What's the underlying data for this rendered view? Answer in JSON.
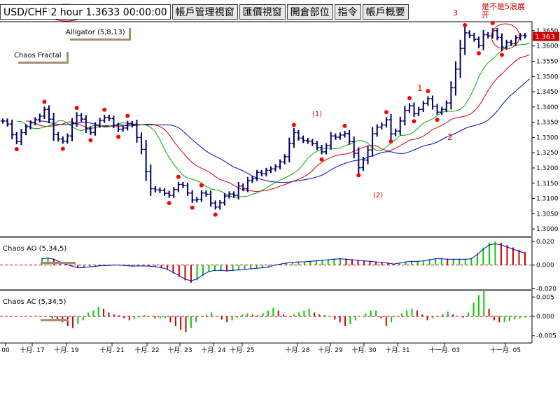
{
  "header": {
    "symbol": "USD/CHF",
    "timeframe": "2 hour",
    "price_time": "1.3633 00:00:00",
    "tabs": [
      "帳戶管理視窗",
      "匯價視窗",
      "開倉部位",
      "指令",
      "帳戶概要"
    ],
    "note_number": "3",
    "note_text_1": "是不是5浪展",
    "note_text_2": "开"
  },
  "colors": {
    "bars": "#000066",
    "jaw": "#0000cc",
    "teeth": "#cc0000",
    "lips": "#00aa00",
    "fractal": "#ff0000",
    "up": "#00cc00",
    "down": "#cc0000",
    "price_tag_bg": "#cc0000",
    "annotation": "#cc0000"
  },
  "chart_data": [
    {
      "type": "candlestick-ohlc",
      "title": "",
      "indicator_labels": [
        "Alligator (5,8,13)",
        "Chaos Fractal"
      ],
      "current_price": "1.363",
      "ylim": [
        1.2975,
        1.3675
      ],
      "y_ticks": [
        "1.3650",
        "1.3600",
        "1.3550",
        "1.3500",
        "1.3450",
        "1.3400",
        "1.3350",
        "1.3300",
        "1.3250",
        "1.3200",
        "1.3150",
        "1.3100",
        "1.3050",
        "1.3000"
      ],
      "annotations": [
        "(1)",
        "(2)",
        "1",
        "2"
      ],
      "close_series": [
        1.3354,
        1.3344,
        1.3309,
        1.3287,
        1.3316,
        1.3335,
        1.3348,
        1.3358,
        1.337,
        1.3392,
        1.336,
        1.331,
        1.3295,
        1.3288,
        1.3305,
        1.3346,
        1.3372,
        1.336,
        1.3328,
        1.3316,
        1.334,
        1.3356,
        1.3366,
        1.3362,
        1.334,
        1.3327,
        1.3331,
        1.3346,
        1.3341,
        1.33,
        1.3261,
        1.3188,
        1.3132,
        1.3128,
        1.3126,
        1.3117,
        1.311,
        1.3129,
        1.3146,
        1.3142,
        1.3118,
        1.3095,
        1.3097,
        1.3118,
        1.3114,
        1.3085,
        1.3072,
        1.3086,
        1.3108,
        1.3115,
        1.311,
        1.3141,
        1.3132,
        1.3159,
        1.3166,
        1.3185,
        1.3181,
        1.3192,
        1.3197,
        1.3204,
        1.322,
        1.3237,
        1.3281,
        1.3316,
        1.3298,
        1.329,
        1.3287,
        1.328,
        1.3267,
        1.3253,
        1.3273,
        1.3305,
        1.3301,
        1.3308,
        1.3313,
        1.3287,
        1.3248,
        1.3201,
        1.3226,
        1.3259,
        1.3312,
        1.3334,
        1.3341,
        1.3358,
        1.3312,
        1.3321,
        1.3354,
        1.3389,
        1.3404,
        1.3378,
        1.3392,
        1.3412,
        1.3427,
        1.3402,
        1.3383,
        1.3392,
        1.3413,
        1.3463,
        1.3524,
        1.3592,
        1.3643,
        1.3635,
        1.3622,
        1.3601,
        1.3637,
        1.3633,
        1.365,
        1.3628,
        1.3596,
        1.3612,
        1.3608,
        1.3627,
        1.3634,
        1.3633
      ]
    },
    {
      "type": "bar",
      "title": "Chaos AO (5,34,5)",
      "ylim": [
        -0.021,
        0.023
      ],
      "y_ticks": [
        "0.020",
        "0.000",
        "-0.020"
      ],
      "values": [
        0.006,
        0.0065,
        0.0055,
        0.003,
        0.001,
        -0.001,
        -0.0025,
        -0.0025,
        -0.0015,
        -0.0012,
        -0.0005,
        -0.0005,
        0,
        0,
        -0.0005,
        -0.001,
        -0.0008,
        -0.0008,
        -0.001,
        -0.0015,
        -0.0025,
        -0.004,
        -0.007,
        -0.01,
        -0.013,
        -0.015,
        -0.013,
        -0.009,
        -0.006,
        -0.005,
        -0.005,
        -0.0055,
        -0.005,
        -0.0045,
        -0.004,
        -0.0035,
        -0.003,
        -0.0025,
        -0.002,
        0,
        0.001,
        0.002,
        0.0025,
        0.003,
        0.003,
        0.0035,
        0.004,
        0.0045,
        0.005,
        0.0055,
        0.006,
        0.0055,
        0.005,
        0.0045,
        0.004,
        0.0035,
        0.003,
        0.0025,
        0.002,
        0.001,
        0.002,
        0.003,
        0.0035,
        0.0035,
        0.004,
        0.005,
        0.006,
        0.006,
        0.0055,
        0.0055,
        0.0055,
        0.0055,
        0.006,
        0.01,
        0.015,
        0.019,
        0.02,
        0.019,
        0.017,
        0.015,
        0.013,
        0.011
      ]
    },
    {
      "type": "bar",
      "title": "Chaos AC (5,34,5)",
      "ylim": [
        -0.0065,
        0.0065
      ],
      "y_ticks": [
        "0.005",
        "0.000",
        "-0.005"
      ],
      "values": [
        0,
        0,
        -0.0005,
        -0.001,
        -0.0015,
        -0.0025,
        -0.003,
        -0.002,
        -0.001,
        0.001,
        0.0015,
        0.0025,
        0.002,
        0.001,
        0.0005,
        0.0003,
        -0.0005,
        -0.001,
        -0.0007,
        -0.0003,
        0.0003,
        0,
        -0.0005,
        -0.0005,
        -0.0005,
        -0.0015,
        -0.0025,
        -0.0035,
        -0.004,
        -0.003,
        -0.0015,
        0,
        0.0005,
        0.001,
        0,
        -0.0008,
        -0.0015,
        -0.001,
        -0.0003,
        0.0005,
        0.0008,
        0.0005,
        0.0003,
        0.0008,
        0.0015,
        0.0022,
        0.0015,
        0.0005,
        0,
        0.0005,
        0.001,
        0.0015,
        0.002,
        0.001,
        0.0005,
        0.0003,
        0,
        -0.0008,
        -0.0015,
        -0.0025,
        -0.002,
        -0.001,
        0,
        0.0008,
        0.0015,
        0.0015,
        -0.0005,
        -0.0025,
        -0.0015,
        0,
        0.0008,
        0.0015,
        0.002,
        0.0015,
        0.0005,
        -0.001,
        -0.0005,
        0,
        0.0005,
        0.0012,
        0.0005,
        0,
        -0.0003,
        0.001,
        0.0035,
        0.0055,
        0.0065,
        0.002,
        -0.001,
        -0.0015,
        -0.0015,
        -0.0012,
        -0.0008,
        -0.0005,
        -0.0003
      ],
      "x_labels": [
        "00",
        "十月. 17",
        "十月. 19",
        "十月. 21",
        "十月. 22",
        "十月. 23",
        "十月. 24",
        "十月. 25",
        "十月. 28",
        "十月. 29",
        "十月. 30",
        "十月. 31",
        "十一月. 03",
        "十一月. 05"
      ]
    }
  ]
}
